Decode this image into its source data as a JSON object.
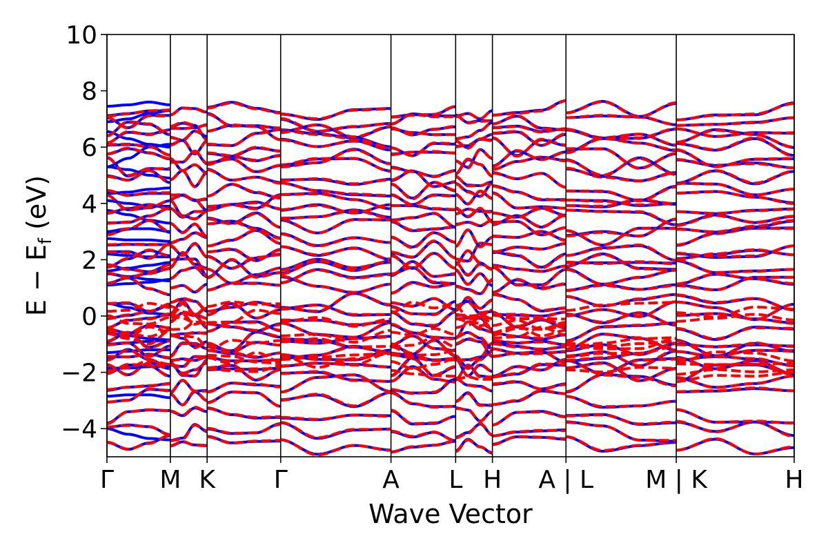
{
  "chart_data": {
    "type": "line",
    "title": "",
    "xlabel": "Wave Vector",
    "ylabel": "E − E_f (eV)",
    "ylabel_parts": {
      "main": "E − E",
      "sub": "f",
      "unit": " (eV)"
    },
    "ylim": [
      -5,
      10
    ],
    "yticks": [
      -4,
      -2,
      0,
      2,
      4,
      6,
      8,
      10
    ],
    "ytick_labels": [
      "−4",
      "−2",
      "0",
      "2",
      "4",
      "6",
      "8",
      "10"
    ],
    "xlim": [
      0,
      10.84
    ],
    "kpoints": [
      {
        "label": "Γ",
        "x": 0.0
      },
      {
        "label": "M",
        "x": 1.0
      },
      {
        "label": "K",
        "x": 1.58
      },
      {
        "label": "Γ",
        "x": 2.74
      },
      {
        "label": "A",
        "x": 4.48
      },
      {
        "label": "L",
        "x": 5.5
      },
      {
        "label": "H",
        "x": 6.08
      },
      {
        "label": "A | L",
        "x": 7.24
      },
      {
        "label": "M | K",
        "x": 8.98
      },
      {
        "label": "H",
        "x": 10.84
      }
    ],
    "grid": false,
    "legend": "none",
    "series_styles": [
      {
        "key": "blue",
        "color": "#0000ff",
        "dash": "solid",
        "width": 4
      },
      {
        "key": "red",
        "color": "#ff0000",
        "dash": "dashed",
        "width": 4
      }
    ],
    "segment_bounds": [
      0,
      1.0,
      1.58,
      2.74,
      4.48,
      5.5,
      6.08,
      7.24,
      8.98,
      10.84
    ],
    "band_approximations": [
      {
        "series": "blue",
        "segment": 0,
        "y": [
          7.45,
          7.5,
          7.6,
          7.5
        ]
      },
      {
        "series": "blue",
        "segment": 0,
        "y": [
          6.9,
          7.0,
          7.2,
          7.3
        ]
      },
      {
        "series": "blue",
        "segment": 0,
        "y": [
          6.55,
          6.3,
          6.1,
          6.0
        ]
      },
      {
        "series": "blue",
        "segment": 0,
        "y": [
          5.3,
          5.6,
          6.0,
          6.1
        ]
      },
      {
        "series": "blue",
        "segment": 0,
        "y": [
          5.3,
          5.2,
          5.0,
          4.9
        ]
      },
      {
        "series": "blue",
        "segment": 0,
        "y": [
          4.35,
          4.4,
          4.5,
          4.55
        ]
      },
      {
        "series": "blue",
        "segment": 0,
        "y": [
          4.1,
          4.0,
          3.9,
          3.9
        ]
      },
      {
        "series": "blue",
        "segment": 0,
        "y": [
          3.75,
          3.6,
          3.4,
          3.3
        ]
      },
      {
        "series": "blue",
        "segment": 0,
        "y": [
          3.0,
          3.1,
          3.1,
          3.0
        ]
      },
      {
        "series": "blue",
        "segment": 0,
        "y": [
          2.75,
          2.7,
          2.7,
          2.65
        ]
      },
      {
        "series": "blue",
        "segment": 0,
        "y": [
          2.2,
          2.15,
          2.1,
          2.1
        ]
      },
      {
        "series": "blue",
        "segment": 0,
        "y": [
          1.6,
          1.7,
          1.8,
          1.9
        ]
      },
      {
        "series": "blue",
        "segment": 0,
        "y": [
          1.5,
          1.4,
          1.3,
          1.25
        ]
      },
      {
        "series": "blue",
        "segment": 0,
        "y": [
          1.1,
          1.15,
          1.2,
          1.3
        ]
      },
      {
        "series": "blue",
        "segment": 0,
        "y": [
          0.45,
          0.3,
          0.1,
          0.05
        ]
      },
      {
        "series": "blue",
        "segment": 0,
        "y": [
          -0.6,
          -0.7,
          -0.8,
          -0.85
        ]
      },
      {
        "series": "blue",
        "segment": 0,
        "y": [
          -1.0,
          -0.95,
          -0.9,
          -0.85
        ]
      },
      {
        "series": "blue",
        "segment": 0,
        "y": [
          -1.3,
          -1.25,
          -1.2,
          -1.2
        ]
      },
      {
        "series": "blue",
        "segment": 0,
        "y": [
          -1.85,
          -1.85,
          -1.8,
          -1.8
        ]
      },
      {
        "series": "blue",
        "segment": 0,
        "y": [
          -2.85,
          -2.8,
          -2.8,
          -2.9
        ]
      },
      {
        "series": "blue",
        "segment": 0,
        "y": [
          -4.0,
          -4.2,
          -4.35,
          -4.4
        ]
      }
    ]
  }
}
